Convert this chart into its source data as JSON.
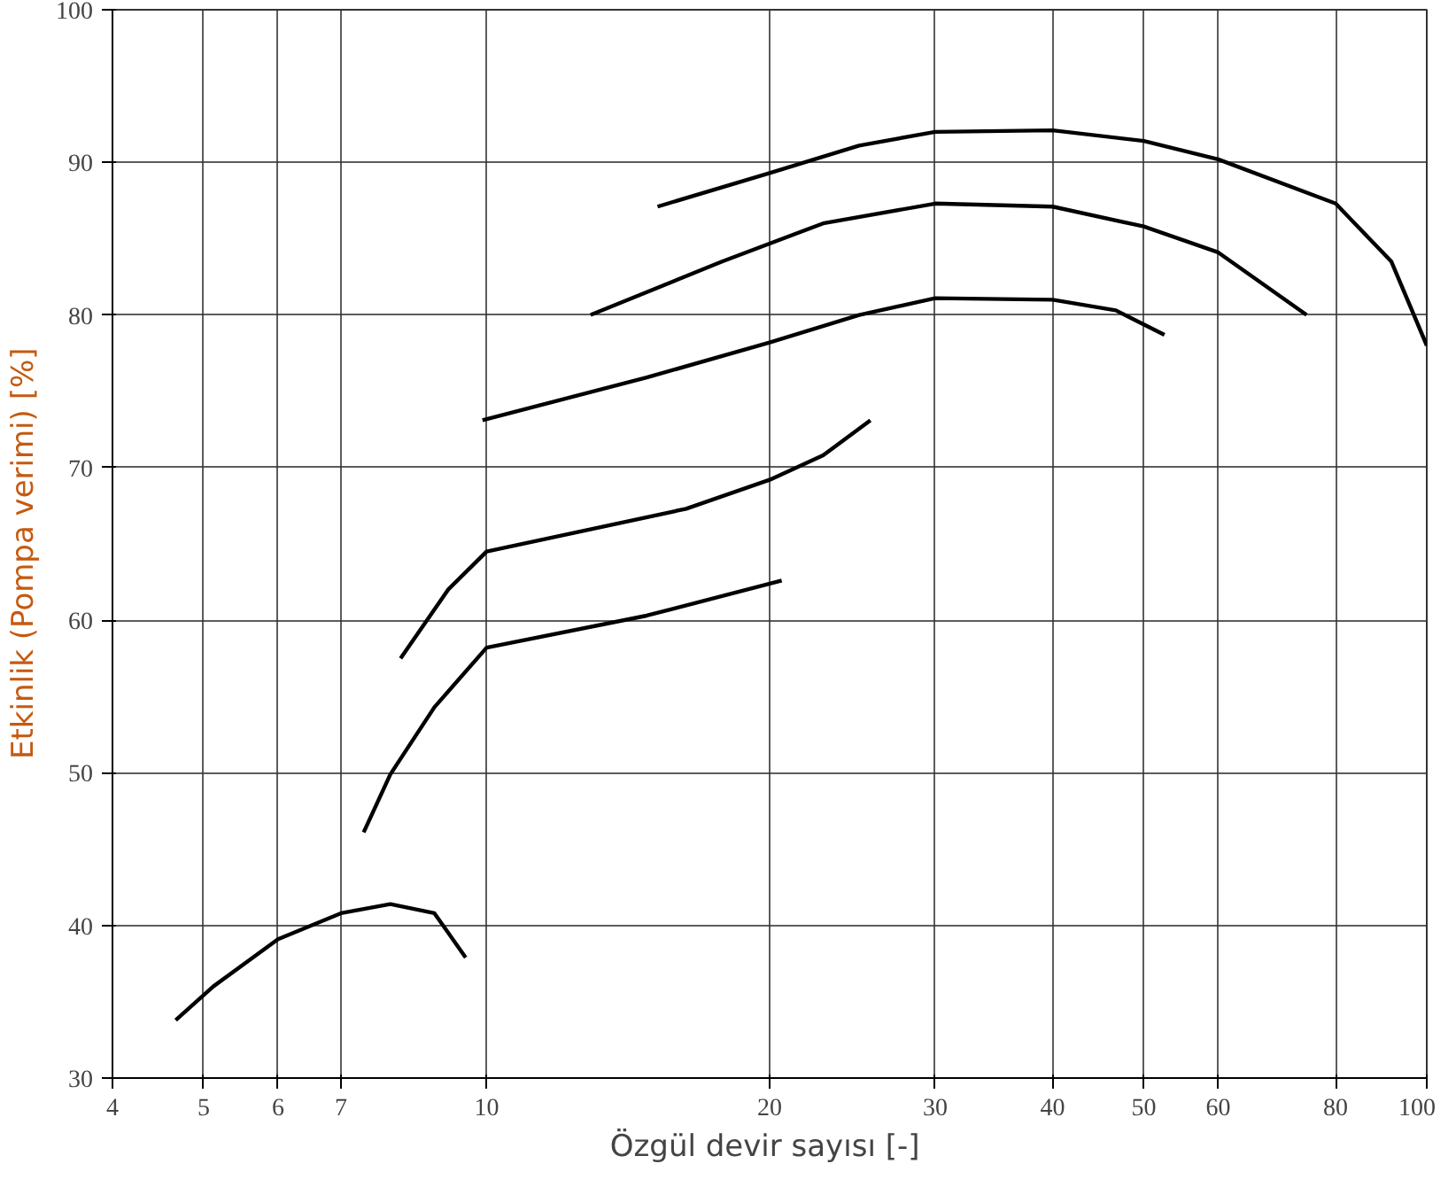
{
  "chart_data": {
    "type": "line",
    "xlabel": "Özgül devir sayısı  [-]",
    "ylabel": "Etkinlik (Pompa verimi)   [%]",
    "xlim": [
      4,
      100
    ],
    "ylim": [
      30,
      100
    ],
    "xticks": [
      4,
      5,
      6,
      7,
      10,
      20,
      30,
      40,
      50,
      60,
      80,
      100
    ],
    "yticks": [
      30,
      40,
      50,
      60,
      70,
      80,
      90,
      100
    ],
    "grid": true,
    "log": "x",
    "marker": "none",
    "line_style": "solid",
    "series": [
      {
        "color": "#000000",
        "x": [
          4.67,
          5.12,
          6,
          7,
          7.9,
          8.8,
          9.5
        ],
        "values": [
          33.8,
          36.0,
          39.1,
          40.8,
          41.4,
          40.8,
          37.9
        ]
      },
      {
        "color": "#000000",
        "x": [
          7.4,
          7.9,
          8.8,
          10,
          14.8,
          20.6
        ],
        "values": [
          46.1,
          49.9,
          54.3,
          58.2,
          60.3,
          62.6
        ]
      },
      {
        "color": "#000000",
        "x": [
          8.1,
          9.1,
          10,
          16.3,
          20,
          22.8,
          25.6
        ],
        "values": [
          57.5,
          62.0,
          64.5,
          67.3,
          69.2,
          70.8,
          73.1
        ]
      },
      {
        "color": "#000000",
        "x": [
          9.9,
          14.8,
          20,
          24.9,
          30,
          40,
          46.7,
          52.6
        ],
        "values": [
          73.1,
          75.9,
          78.2,
          80.0,
          81.1,
          81.0,
          80.3,
          78.7
        ]
      },
      {
        "color": "#000000",
        "x": [
          12.9,
          17.8,
          22.8,
          30,
          40,
          50,
          60,
          74.5
        ],
        "values": [
          80.0,
          83.5,
          86.0,
          87.3,
          87.1,
          85.8,
          84.1,
          80.0
        ]
      },
      {
        "color": "#000000",
        "x": [
          15.2,
          20,
          24.9,
          30,
          40,
          50,
          60,
          80,
          91.7,
          100
        ],
        "values": [
          87.1,
          89.3,
          91.1,
          92.0,
          92.1,
          91.4,
          90.2,
          87.3,
          83.5,
          78.0
        ]
      }
    ]
  }
}
